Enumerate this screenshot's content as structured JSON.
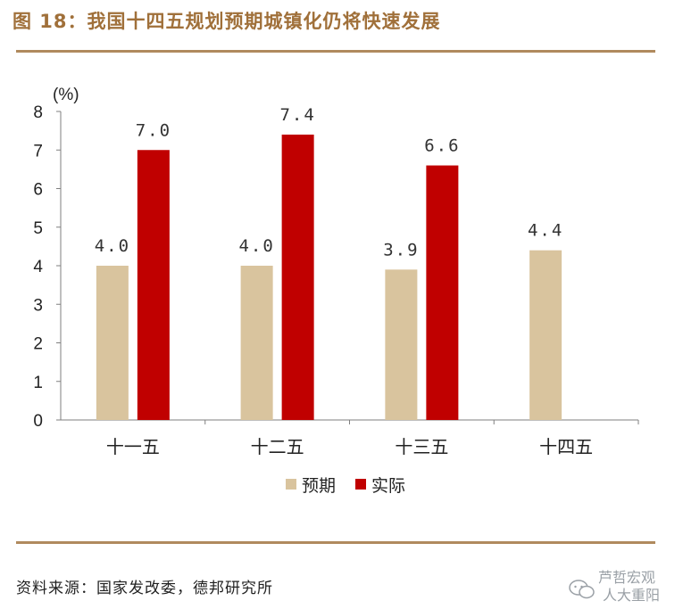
{
  "figure": {
    "title": "图 18：我国十四五规划预期城镇化仍将快速发展",
    "source": "资料来源：国家发改委，德邦研究所"
  },
  "watermark": {
    "line1": "芦哲宏观",
    "line2": "人大重阳"
  },
  "colors": {
    "accent": "#a0703a",
    "expected": "#d9c49e",
    "actual": "#c00000"
  },
  "chart_data": {
    "type": "bar",
    "categories": [
      "十一五",
      "十二五",
      "十三五",
      "十四五"
    ],
    "ylabel": "(%)",
    "ylim": [
      0,
      8
    ],
    "yticks": [
      "0",
      "1",
      "2",
      "3",
      "4",
      "5",
      "6",
      "7",
      "8"
    ],
    "grid": false,
    "legend": "bottom",
    "series": [
      {
        "name": "预期",
        "values": [
          4.0,
          4.0,
          3.9,
          4.4
        ],
        "labels": [
          "4.0",
          "4.0",
          "3.9",
          "4.4"
        ]
      },
      {
        "name": "实际",
        "values": [
          7.0,
          7.4,
          6.6,
          null
        ],
        "labels": [
          "7.0",
          "7.4",
          "6.6",
          ""
        ]
      }
    ]
  }
}
